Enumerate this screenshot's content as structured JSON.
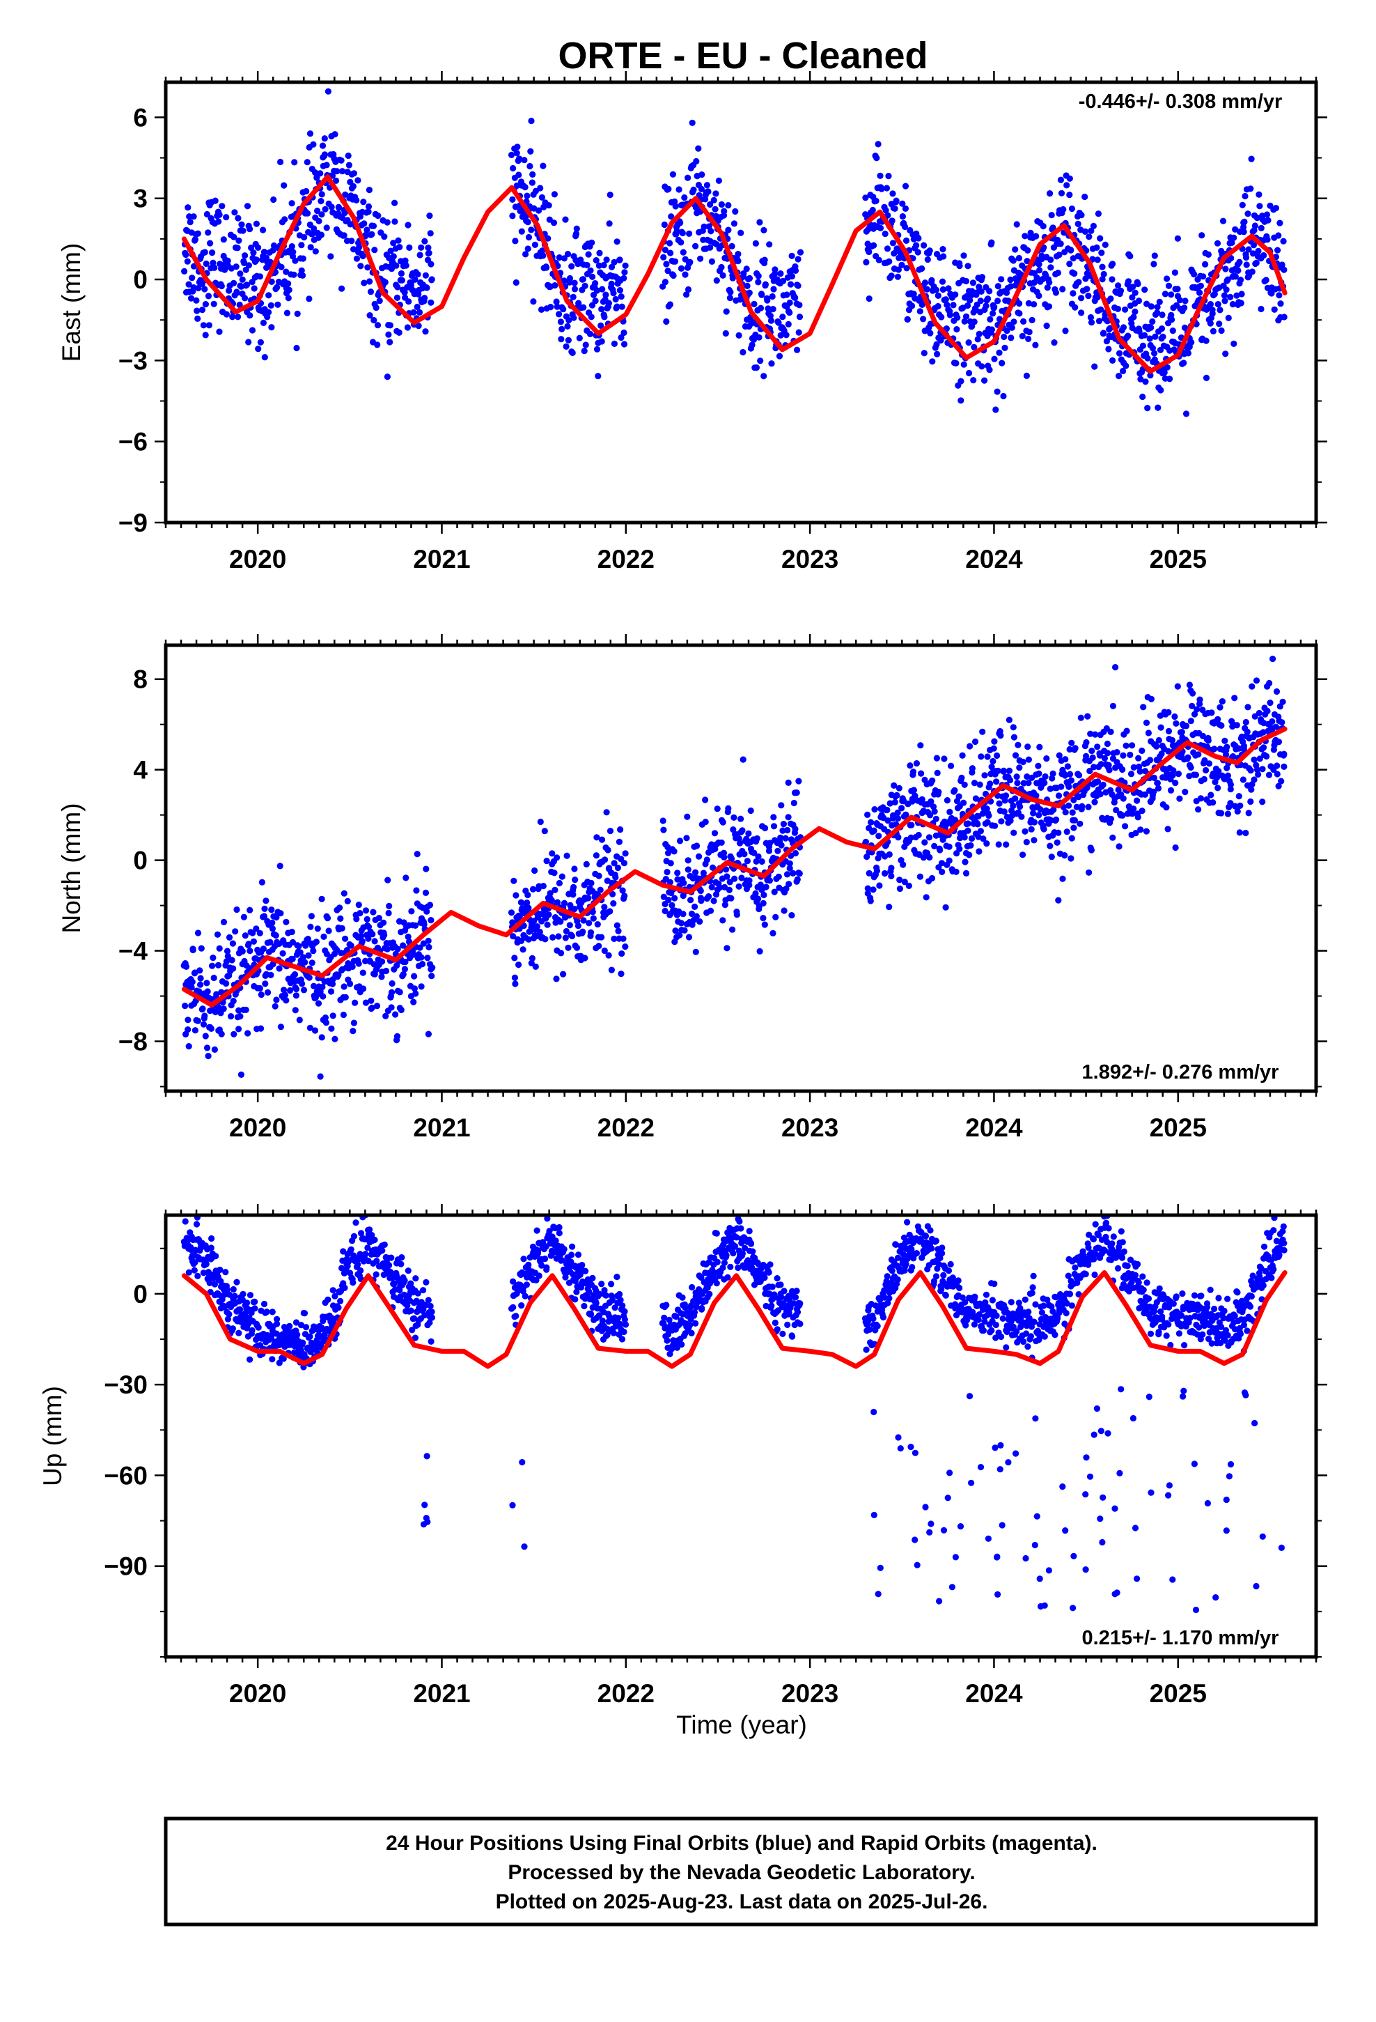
{
  "title": "ORTE  - EU - Cleaned",
  "xlabel": "Time (year)",
  "footer": {
    "line1": "24 Hour Positions Using Final Orbits (blue) and Rapid Orbits (magenta).",
    "line2": "Processed by the Nevada Geodetic Laboratory.",
    "line3": "Plotted on 2025-Aug-23. Last data on 2025-Jul-26."
  },
  "colors": {
    "points": "#0000ff",
    "model": "#ff0000",
    "frame": "#000000"
  },
  "chart_data": [
    {
      "type": "scatter",
      "ylabel": "East (mm)",
      "rate_label": "-0.446+/- 0.308 mm/yr",
      "xlim": [
        2019.5,
        2025.75
      ],
      "ylim": [
        -9,
        7.3
      ],
      "xticks": [
        2020,
        2021,
        2022,
        2023,
        2024,
        2025
      ],
      "yticks": [
        -9,
        -6,
        -3,
        0,
        3,
        6
      ],
      "series": [
        {
          "kind": "points",
          "data_spans": [
            [
              2019.6,
              2020.95
            ],
            [
              2021.38,
              2022.0
            ],
            [
              2022.2,
              2022.95
            ],
            [
              2023.3,
              2025.58
            ]
          ],
          "model_type": "linear+annual+semiannual",
          "velocity_mm_per_yr": -0.446,
          "approx_ranges": [
            {
              "x": 2019.7,
              "y_min": -2.5,
              "y_max": 2.5
            },
            {
              "x": 2020.35,
              "y_min": 1.5,
              "y_max": 7
            },
            {
              "x": 2020.8,
              "y_min": -3.5,
              "y_max": 1.5
            },
            {
              "x": 2021.4,
              "y_min": 0,
              "y_max": 4.4
            },
            {
              "x": 2021.85,
              "y_min": -5.4,
              "y_max": 0
            },
            {
              "x": 2022.35,
              "y_min": 0,
              "y_max": 6.3
            },
            {
              "x": 2022.85,
              "y_min": -4.3,
              "y_max": 0.5
            },
            {
              "x": 2023.35,
              "y_min": 1,
              "y_max": 4.7
            },
            {
              "x": 2023.9,
              "y_min": -8.7,
              "y_max": -1
            },
            {
              "x": 2024.4,
              "y_min": -1,
              "y_max": 3.6
            },
            {
              "x": 2024.75,
              "y_min": -8.6,
              "y_max": -2
            },
            {
              "x": 2025.4,
              "y_min": 0,
              "y_max": 4.5
            }
          ]
        }
      ],
      "model_curve": [
        [
          2019.6,
          1.5
        ],
        [
          2019.72,
          0
        ],
        [
          2019.88,
          -1.2
        ],
        [
          2020.0,
          -0.8
        ],
        [
          2020.12,
          1.0
        ],
        [
          2020.25,
          2.8
        ],
        [
          2020.38,
          3.8
        ],
        [
          2020.52,
          2.3
        ],
        [
          2020.68,
          -0.5
        ],
        [
          2020.85,
          -1.6
        ],
        [
          2021.0,
          -1.0
        ],
        [
          2021.12,
          0.8
        ],
        [
          2021.25,
          2.5
        ],
        [
          2021.38,
          3.4
        ],
        [
          2021.52,
          2.0
        ],
        [
          2021.68,
          -0.8
        ],
        [
          2021.85,
          -2.0
        ],
        [
          2022.0,
          -1.3
        ],
        [
          2022.12,
          0.2
        ],
        [
          2022.25,
          2.1
        ],
        [
          2022.38,
          3.0
        ],
        [
          2022.52,
          1.7
        ],
        [
          2022.68,
          -1.2
        ],
        [
          2022.85,
          -2.6
        ],
        [
          2023.0,
          -2.0
        ],
        [
          2023.12,
          -0.2
        ],
        [
          2023.25,
          1.8
        ],
        [
          2023.38,
          2.5
        ],
        [
          2023.52,
          1.0
        ],
        [
          2023.68,
          -1.6
        ],
        [
          2023.85,
          -2.9
        ],
        [
          2024.0,
          -2.3
        ],
        [
          2024.12,
          -0.6
        ],
        [
          2024.25,
          1.3
        ],
        [
          2024.38,
          2.0
        ],
        [
          2024.52,
          0.6
        ],
        [
          2024.68,
          -2.2
        ],
        [
          2024.85,
          -3.4
        ],
        [
          2025.0,
          -2.8
        ],
        [
          2025.12,
          -1.0
        ],
        [
          2025.25,
          0.8
        ],
        [
          2025.4,
          1.6
        ],
        [
          2025.5,
          1.0
        ],
        [
          2025.58,
          -0.5
        ]
      ]
    },
    {
      "type": "scatter",
      "ylabel": "North (mm)",
      "rate_label": "1.892+/- 0.276 mm/yr",
      "xlim": [
        2019.5,
        2025.75
      ],
      "ylim": [
        -10.2,
        9.5
      ],
      "xticks": [
        2020,
        2021,
        2022,
        2023,
        2024,
        2025
      ],
      "yticks": [
        -8,
        -4,
        0,
        4,
        8
      ],
      "series": [
        {
          "kind": "points",
          "data_spans": [
            [
              2019.6,
              2020.95
            ],
            [
              2021.38,
              2022.0
            ],
            [
              2022.2,
              2022.95
            ],
            [
              2023.3,
              2025.58
            ]
          ],
          "model_type": "linear+annual+semiannual",
          "velocity_mm_per_yr": 1.892
        }
      ],
      "model_curve": [
        [
          2019.6,
          -5.7
        ],
        [
          2019.75,
          -6.4
        ],
        [
          2019.9,
          -5.5
        ],
        [
          2020.05,
          -4.3
        ],
        [
          2020.2,
          -4.7
        ],
        [
          2020.35,
          -5.1
        ],
        [
          2020.55,
          -3.8
        ],
        [
          2020.75,
          -4.4
        ],
        [
          2020.9,
          -3.3
        ],
        [
          2021.05,
          -2.3
        ],
        [
          2021.2,
          -2.9
        ],
        [
          2021.35,
          -3.3
        ],
        [
          2021.55,
          -1.9
        ],
        [
          2021.75,
          -2.5
        ],
        [
          2021.9,
          -1.4
        ],
        [
          2022.05,
          -0.5
        ],
        [
          2022.2,
          -1.1
        ],
        [
          2022.35,
          -1.4
        ],
        [
          2022.55,
          -0.1
        ],
        [
          2022.75,
          -0.7
        ],
        [
          2022.9,
          0.5
        ],
        [
          2023.05,
          1.4
        ],
        [
          2023.2,
          0.8
        ],
        [
          2023.35,
          0.5
        ],
        [
          2023.55,
          1.9
        ],
        [
          2023.75,
          1.2
        ],
        [
          2023.9,
          2.3
        ],
        [
          2024.05,
          3.3
        ],
        [
          2024.2,
          2.7
        ],
        [
          2024.35,
          2.4
        ],
        [
          2024.55,
          3.8
        ],
        [
          2024.75,
          3.1
        ],
        [
          2024.9,
          4.2
        ],
        [
          2025.05,
          5.2
        ],
        [
          2025.2,
          4.6
        ],
        [
          2025.32,
          4.3
        ],
        [
          2025.45,
          5.3
        ],
        [
          2025.58,
          5.8
        ]
      ]
    },
    {
      "type": "scatter",
      "ylabel": "Up (mm)",
      "rate_label": "0.215+/- 1.170 mm/yr",
      "xlim": [
        2019.5,
        2025.75
      ],
      "ylim": [
        -120,
        26
      ],
      "xticks": [
        2020,
        2021,
        2022,
        2023,
        2024,
        2025
      ],
      "yticks": [
        -90,
        -60,
        -30,
        0
      ],
      "series": [
        {
          "kind": "points",
          "data_spans": [
            [
              2019.6,
              2020.95
            ],
            [
              2021.38,
              2022.0
            ],
            [
              2022.2,
              2022.95
            ],
            [
              2023.3,
              2025.58
            ]
          ],
          "model_type": "linear+annual+semiannual",
          "velocity_mm_per_yr": 0.215,
          "outliers_note": "scattered low outliers down to about -110 mm in 2023.3-2025.58, and near 2020.9 and 2021.45"
        }
      ],
      "model_curve": [
        [
          2019.6,
          6
        ],
        [
          2019.72,
          0
        ],
        [
          2019.85,
          -15
        ],
        [
          2020.0,
          -19
        ],
        [
          2020.12,
          -19
        ],
        [
          2020.25,
          -23
        ],
        [
          2020.35,
          -20
        ],
        [
          2020.48,
          -5
        ],
        [
          2020.6,
          6
        ],
        [
          2020.72,
          -5
        ],
        [
          2020.85,
          -17
        ],
        [
          2021.0,
          -19
        ],
        [
          2021.12,
          -19
        ],
        [
          2021.25,
          -24
        ],
        [
          2021.35,
          -20
        ],
        [
          2021.48,
          -3
        ],
        [
          2021.6,
          6
        ],
        [
          2021.72,
          -5
        ],
        [
          2021.85,
          -18
        ],
        [
          2022.0,
          -19
        ],
        [
          2022.12,
          -19
        ],
        [
          2022.25,
          -24
        ],
        [
          2022.35,
          -20
        ],
        [
          2022.48,
          -3
        ],
        [
          2022.6,
          6
        ],
        [
          2022.72,
          -5
        ],
        [
          2022.85,
          -18
        ],
        [
          2023.0,
          -19
        ],
        [
          2023.12,
          -20
        ],
        [
          2023.25,
          -24
        ],
        [
          2023.35,
          -20
        ],
        [
          2023.48,
          -2
        ],
        [
          2023.6,
          7
        ],
        [
          2023.72,
          -4
        ],
        [
          2023.85,
          -18
        ],
        [
          2024.0,
          -19
        ],
        [
          2024.12,
          -20
        ],
        [
          2024.25,
          -23
        ],
        [
          2024.35,
          -19
        ],
        [
          2024.48,
          -1
        ],
        [
          2024.6,
          7
        ],
        [
          2024.72,
          -4
        ],
        [
          2024.85,
          -17
        ],
        [
          2025.0,
          -19
        ],
        [
          2025.12,
          -19
        ],
        [
          2025.25,
          -23
        ],
        [
          2025.35,
          -20
        ],
        [
          2025.48,
          -2
        ],
        [
          2025.58,
          7
        ]
      ]
    }
  ]
}
